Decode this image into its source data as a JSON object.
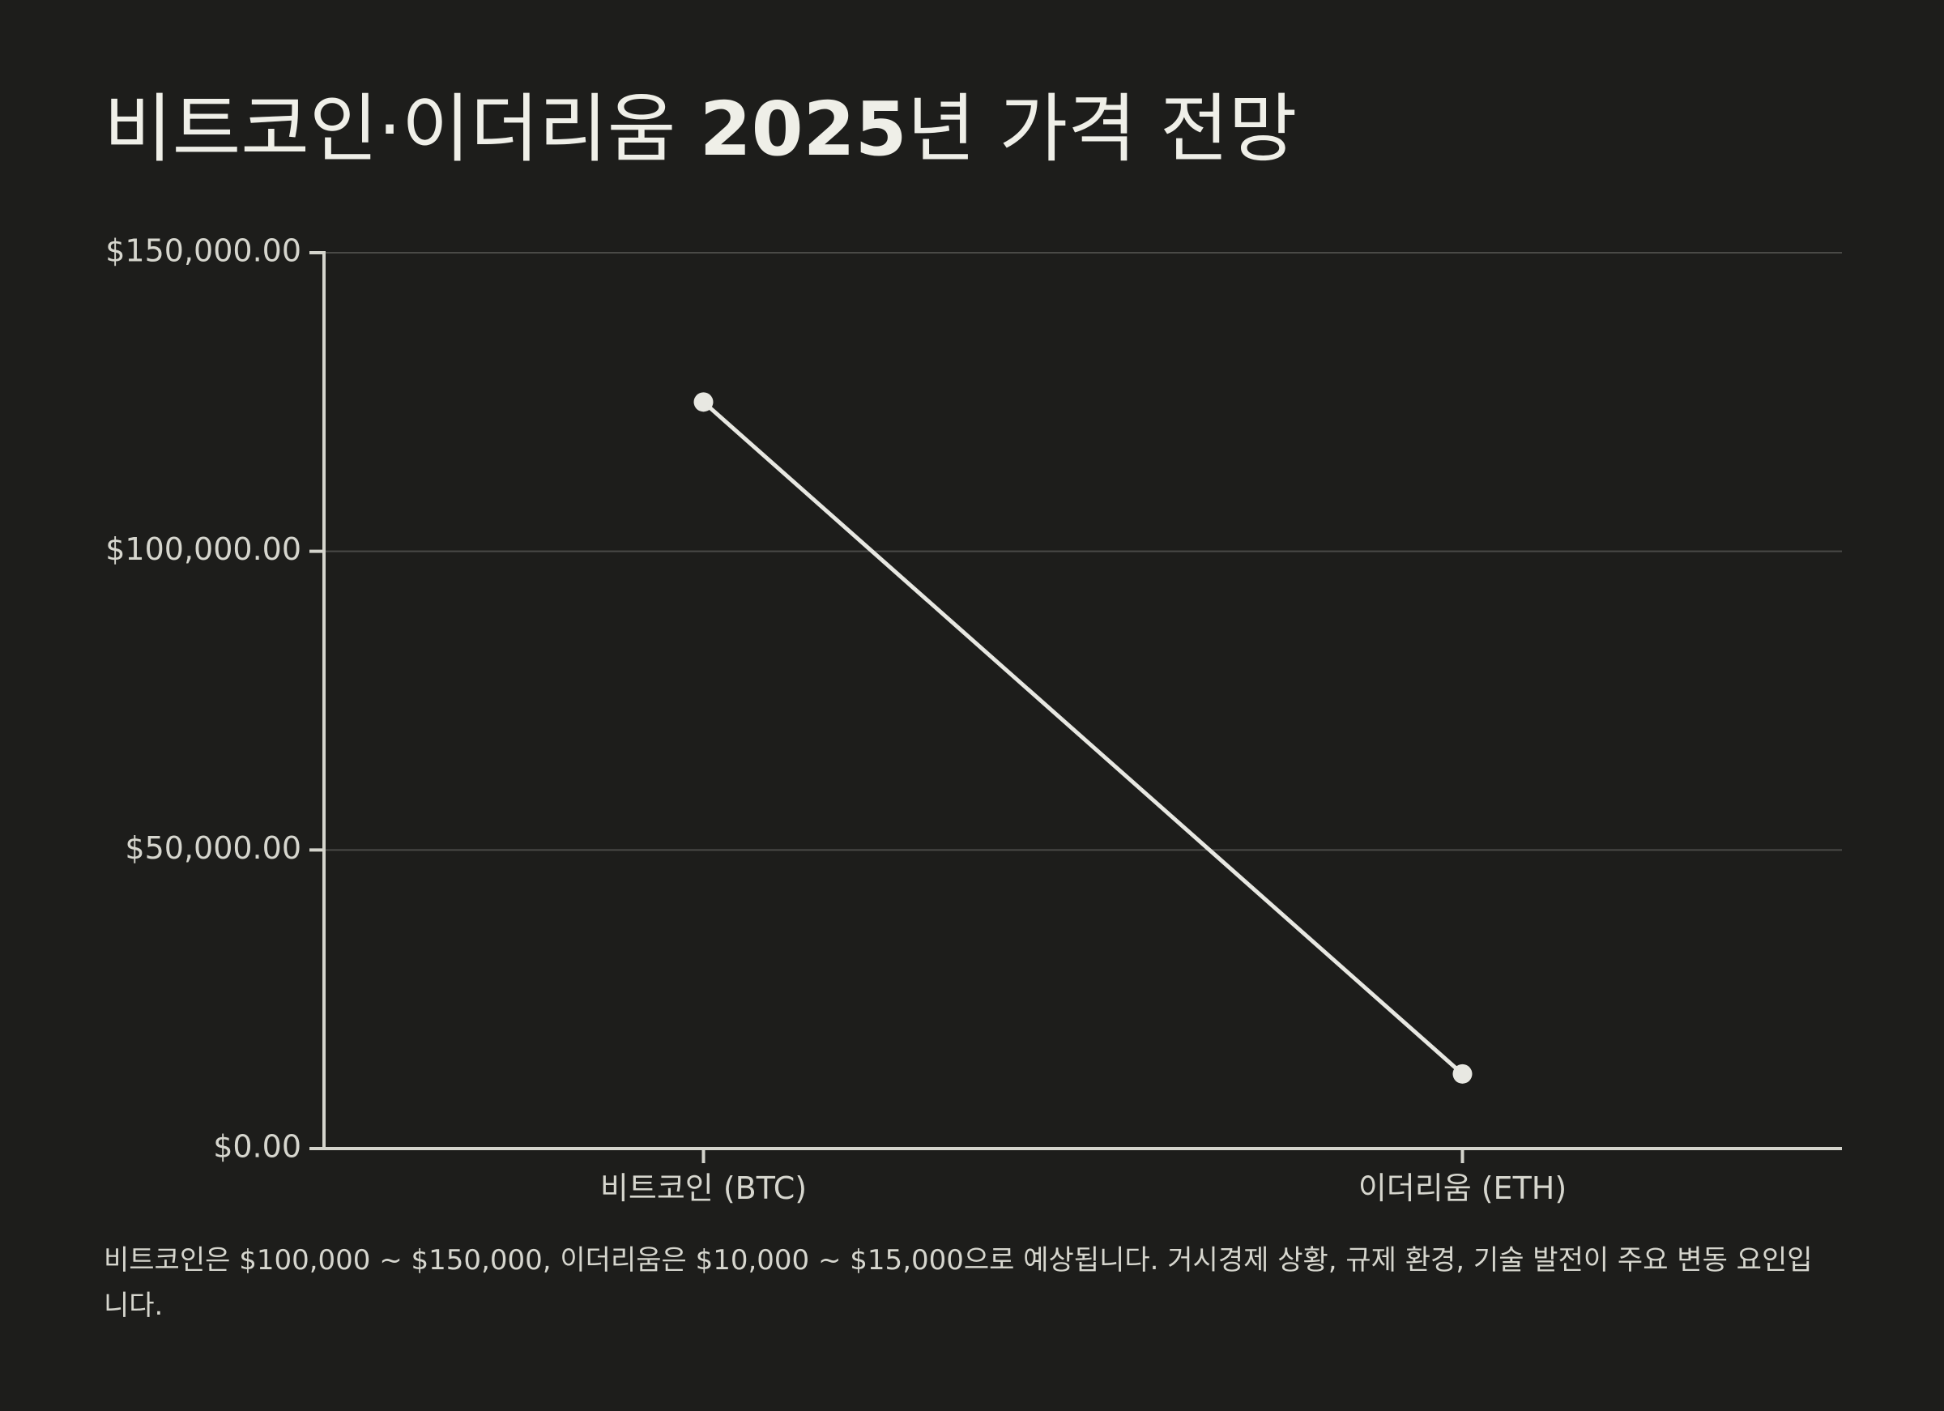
{
  "title": {
    "prefix": "비트코인·이더리움 ",
    "bold": "2025",
    "suffix": "년 가격 전망"
  },
  "colors": {
    "background": "#1d1d1b",
    "line": "#e8e8e2",
    "axis": "#d4d4cc",
    "grid": "#4a4a47",
    "text": "#d6d6ce"
  },
  "chart_data": {
    "type": "line",
    "categories": [
      "비트코인 (BTC)",
      "이더리움 (ETH)"
    ],
    "series": [
      {
        "values": [
          125000,
          12500
        ]
      }
    ],
    "ylim": [
      0,
      150000
    ],
    "yticks": [
      {
        "value": 0,
        "label": "$0.00"
      },
      {
        "value": 50000,
        "label": "$50,000.00"
      },
      {
        "value": 100000,
        "label": "$100,000.00"
      },
      {
        "value": 150000,
        "label": "$150,000.00"
      }
    ],
    "grid": true
  },
  "note": "비트코인은 $100,000 ~ $150,000, 이더리움은 $10,000 ~ $15,000으로 예상됩니다. 거시경제 상황, 규제 환경, 기술 발전이 주요 변동 요인입니다."
}
